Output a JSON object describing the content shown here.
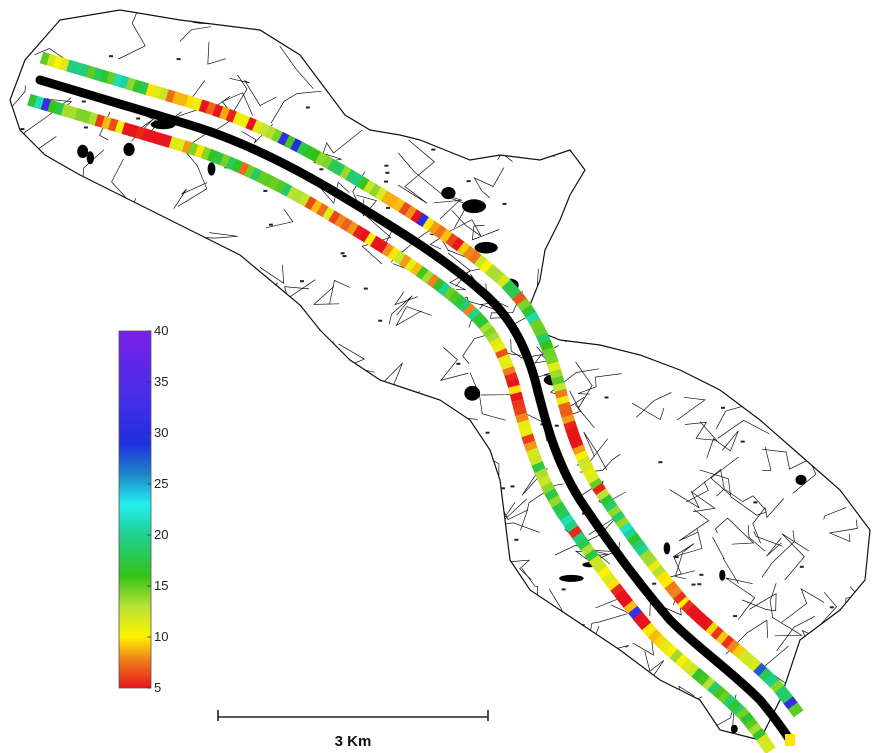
{
  "map": {
    "colorbar": {
      "min": 5,
      "max": 40,
      "ticks": [
        5,
        10,
        15,
        20,
        25,
        30,
        35,
        40
      ],
      "tick_labels": [
        "5",
        "10",
        "15",
        "20",
        "25",
        "30",
        "35",
        "40"
      ],
      "color_stops": [
        {
          "value": 5,
          "color": "#e8141c"
        },
        {
          "value": 8,
          "color": "#f08a1a"
        },
        {
          "value": 10,
          "color": "#fff200"
        },
        {
          "value": 13,
          "color": "#b8e234"
        },
        {
          "value": 16,
          "color": "#34c21a"
        },
        {
          "value": 20,
          "color": "#1fd090"
        },
        {
          "value": 23,
          "color": "#22f0f0"
        },
        {
          "value": 26,
          "color": "#1f84c8"
        },
        {
          "value": 29,
          "color": "#1f2fe0"
        },
        {
          "value": 34,
          "color": "#4a2de8"
        },
        {
          "value": 40,
          "color": "#7a1fe8"
        }
      ]
    },
    "scale_bar": {
      "label": "3 Km"
    },
    "colors": {
      "river": "#000000",
      "parcel_fill": "#ffffff",
      "parcel_stroke": "#111111",
      "water_bodies": "#000000"
    }
  }
}
